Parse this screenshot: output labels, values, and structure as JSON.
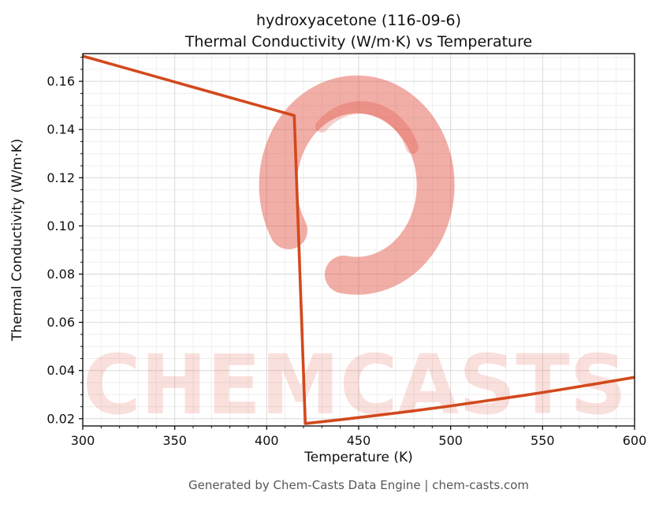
{
  "page": {
    "title_line1": "hydroxyacetone (116-09-6)",
    "title_line2": "Thermal Conductivity (W/m·K) vs Temperature",
    "footer": "Generated by Chem-Casts Data Engine | chem-casts.com",
    "watermark_text": "CHEMCASTS"
  },
  "chart_data": {
    "type": "line",
    "title": "hydroxyacetone (116-09-6) — Thermal Conductivity (W/m·K) vs Temperature",
    "xlabel": "Temperature (K)",
    "ylabel": "Thermal Conductivity (W/m·K)",
    "xlim": [
      300,
      600
    ],
    "ylim": [
      0.017,
      0.1715
    ],
    "x_ticks": [
      300,
      350,
      400,
      450,
      500,
      550,
      600
    ],
    "y_ticks": [
      0.02,
      0.04,
      0.06,
      0.08,
      0.1,
      0.12,
      0.14,
      0.16
    ],
    "x_minor_step": 10,
    "y_minor_step": 0.005,
    "grid": true,
    "legend": false,
    "line_color": "#d2491d",
    "watermark_color": "#dd3d2a",
    "series": [
      {
        "name": "thermal_conductivity",
        "points": [
          [
            300,
            0.1705
          ],
          [
            320,
            0.1662
          ],
          [
            340,
            0.1619
          ],
          [
            360,
            0.1576
          ],
          [
            380,
            0.1533
          ],
          [
            400,
            0.149
          ],
          [
            415,
            0.1458
          ],
          [
            421,
            0.018
          ],
          [
            440,
            0.0196
          ],
          [
            460,
            0.0214
          ],
          [
            480,
            0.0233
          ],
          [
            500,
            0.0253
          ],
          [
            520,
            0.0275
          ],
          [
            540,
            0.0297
          ],
          [
            560,
            0.0321
          ],
          [
            580,
            0.0346
          ],
          [
            600,
            0.0372
          ]
        ]
      }
    ]
  }
}
